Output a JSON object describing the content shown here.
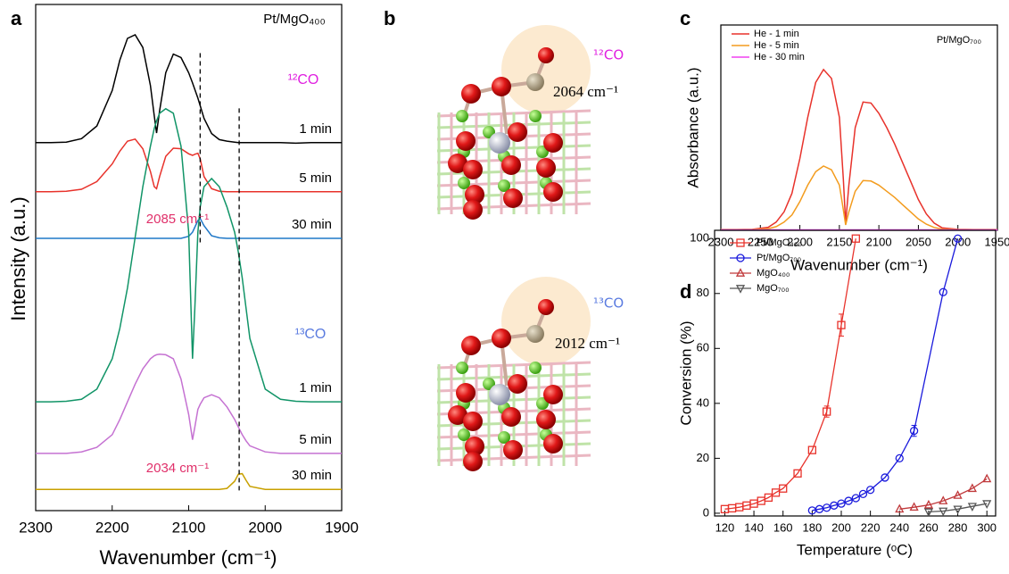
{
  "chart_data": [
    {
      "type": "line",
      "label": "a",
      "x_label": "Wavenumber (cm⁻¹)",
      "y_label": "Intensity (a.u.)",
      "xlim": [
        2300,
        1900
      ],
      "xticks": [
        2300,
        2200,
        2100,
        2000,
        1900
      ],
      "ylim": [
        0,
        100
      ],
      "x": [
        2300,
        2280,
        2260,
        2240,
        2220,
        2200,
        2190,
        2180,
        2170,
        2160,
        2150,
        2145,
        2142,
        2138,
        2130,
        2120,
        2110,
        2100,
        2095,
        2092,
        2088,
        2085,
        2080,
        2070,
        2060,
        2050,
        2040,
        2035,
        2030,
        2025,
        2020,
        2000,
        1980,
        1960,
        1940,
        1920,
        1900
      ],
      "series": [
        {
          "name": "1 min",
          "color": "#000000",
          "values": [
            72.7,
            72.7,
            72.8,
            73.5,
            76,
            83,
            89,
            93.3,
            94,
            91.5,
            84,
            78,
            74.6,
            79,
            86.5,
            90.2,
            89.5,
            86.5,
            84.5,
            83.2,
            81.5,
            80,
            77.5,
            74.5,
            73.3,
            73,
            72.8,
            72.7,
            72.7,
            72.7,
            72.7,
            72.7,
            72.7,
            72.6,
            72.7,
            72.7,
            72.7
          ]
        },
        {
          "name": "5 min",
          "color": "#e8322b",
          "values": [
            63,
            63,
            63.1,
            63.5,
            65,
            68.5,
            71,
            73,
            73.4,
            71.5,
            67,
            64,
            63.6,
            66,
            70,
            71.6,
            71.5,
            70.5,
            70.2,
            70.4,
            70.6,
            69.5,
            66,
            63.6,
            63.1,
            63,
            63,
            63,
            63,
            63,
            63,
            63,
            63,
            63,
            63,
            63,
            63
          ]
        },
        {
          "name": "30 min",
          "color": "#1f78c8",
          "values": [
            53.8,
            53.8,
            53.8,
            53.8,
            53.8,
            53.8,
            53.8,
            53.8,
            53.8,
            53.8,
            53.8,
            53.8,
            53.8,
            53.8,
            53.8,
            53.8,
            53.8,
            54.2,
            55,
            56,
            57.3,
            57.7,
            56.3,
            54.3,
            53.9,
            53.8,
            53.8,
            53.8,
            53.8,
            53.8,
            53.8,
            53.8,
            53.8,
            53.8,
            53.8,
            53.8,
            53.8
          ]
        },
        {
          "name": "1 min",
          "color": "#119467",
          "values": [
            21.5,
            21.5,
            21.6,
            22,
            24,
            30,
            36,
            44,
            54,
            64,
            72,
            75.5,
            77,
            78.5,
            79.4,
            78.5,
            72,
            55,
            30,
            40,
            55,
            60,
            64,
            65.6,
            64,
            60,
            55,
            51,
            46,
            40,
            34,
            24,
            22,
            21.6,
            21.5,
            21.5,
            21.5
          ]
        },
        {
          "name": "5 min",
          "color": "#c572d2",
          "values": [
            11.3,
            11.3,
            11.3,
            11.6,
            12.5,
            15,
            18,
            21.5,
            25,
            28,
            30,
            30.6,
            30.8,
            30.9,
            30.8,
            30,
            26,
            19,
            14,
            16.5,
            20,
            21,
            22.3,
            22.9,
            22.3,
            20.5,
            18,
            16.5,
            15,
            13.8,
            12.8,
            11.6,
            11.3,
            11.3,
            11.3,
            11.3,
            11.3
          ]
        },
        {
          "name": "30 min",
          "color": "#c8a000",
          "values": [
            4.2,
            4.2,
            4.2,
            4.2,
            4.2,
            4.2,
            4.2,
            4.2,
            4.2,
            4.2,
            4.2,
            4.2,
            4.2,
            4.2,
            4.2,
            4.2,
            4.2,
            4.2,
            4.2,
            4.2,
            4.2,
            4.2,
            4.2,
            4.2,
            4.2,
            4.4,
            5.8,
            7.2,
            7.3,
            6,
            4.8,
            4.2,
            4.2,
            4.2,
            4.2,
            4.2,
            4.2
          ]
        }
      ],
      "vlines": [
        {
          "x": 2085,
          "y": [
            53,
            91
          ]
        },
        {
          "x": 2034,
          "y": [
            4,
            80
          ]
        }
      ],
      "annotations": [
        {
          "text": "Pt/MgO₄₀₀",
          "color": "#000000"
        },
        {
          "text": "¹²CO",
          "color": "#e020e0"
        },
        {
          "text": "¹³CO",
          "color": "#5a7be0"
        },
        {
          "text": "2085 cm⁻¹",
          "color": "#e0306a"
        },
        {
          "text": "2034 cm⁻¹",
          "color": "#e0306a"
        }
      ]
    },
    {
      "type": "illustration",
      "label": "b",
      "annotations": [
        {
          "text": "¹²CO",
          "color": "#e020e0"
        },
        {
          "text": "2064 cm⁻¹",
          "color": "#000000"
        },
        {
          "text": "¹³CO",
          "color": "#5a7be0"
        },
        {
          "text": "2012 cm⁻¹",
          "color": "#000000"
        }
      ]
    },
    {
      "type": "line",
      "label": "c",
      "x_label": "Wavenumber (cm⁻¹)",
      "y_label": "Absorbance (a.u.)",
      "xlim": [
        2300,
        1950
      ],
      "xticks": [
        2300,
        2250,
        2200,
        2150,
        2100,
        2050,
        2000,
        1950
      ],
      "ylim": [
        0,
        100
      ],
      "x": [
        2300,
        2280,
        2260,
        2240,
        2230,
        2220,
        2210,
        2200,
        2190,
        2180,
        2170,
        2160,
        2150,
        2145,
        2142,
        2138,
        2130,
        2120,
        2110,
        2100,
        2090,
        2080,
        2070,
        2060,
        2050,
        2040,
        2030,
        2020,
        2000,
        1980,
        1960,
        1950
      ],
      "legend": "upper left",
      "series": [
        {
          "name": "He - 1 min",
          "color": "#e8322b",
          "values": [
            0.4,
            0.4,
            0.5,
            1.5,
            4,
            9,
            18,
            35,
            55,
            72,
            78.3,
            74,
            55,
            25,
            3.5,
            22,
            50,
            62.5,
            62,
            57,
            50,
            42,
            33,
            24,
            15,
            8,
            3.5,
            1.2,
            0.5,
            0.4,
            0.4,
            0.4
          ]
        },
        {
          "name": "He - 5 min",
          "color": "#f39c1e",
          "values": [
            0.3,
            0.3,
            0.4,
            0.8,
            1.8,
            4,
            7.5,
            14,
            22,
            28.5,
            31.3,
            29.5,
            22,
            10,
            2.6,
            9,
            19,
            24.2,
            24,
            22,
            19,
            16,
            12.5,
            9,
            5.5,
            3,
            1.4,
            0.6,
            0.3,
            0.3,
            0.3,
            0.3
          ]
        },
        {
          "name": "He - 30 min",
          "color": "#f040f0",
          "values": [
            0.2,
            0.2,
            0.2,
            0.2,
            0.2,
            0.2,
            0.2,
            0.2,
            0.2,
            0.2,
            0.2,
            0.2,
            0.2,
            0.2,
            0.2,
            0.2,
            0.2,
            0.2,
            0.2,
            0.2,
            0.2,
            0.2,
            0.2,
            0.2,
            0.2,
            0.2,
            0.2,
            0.2,
            0.2,
            0.2,
            0.2,
            0.2
          ]
        }
      ],
      "annotations": [
        {
          "text": "Pt/MgO₇₀₀",
          "color": "#000000"
        }
      ]
    },
    {
      "type": "scatter",
      "label": "d",
      "x_label": "Temperature (ᵒC)",
      "y_label": "Conversion (%)",
      "xlim": [
        113,
        306
      ],
      "xticks": [
        120,
        140,
        160,
        180,
        200,
        220,
        240,
        260,
        280,
        300
      ],
      "ylim": [
        -1,
        103
      ],
      "yticks": [
        0,
        20,
        40,
        60,
        80,
        100
      ],
      "legend": "upper left",
      "series": [
        {
          "name": "Pt/MgO₄₀₀",
          "color": "#e8322b",
          "marker": "square",
          "x": [
            120,
            125,
            130,
            135,
            140,
            145,
            150,
            155,
            160,
            170,
            180,
            190,
            200,
            210
          ],
          "values": [
            1.5,
            1.8,
            2.2,
            2.8,
            3.5,
            4.5,
            5.7,
            7.5,
            9,
            14.5,
            23,
            37,
            68.5,
            100
          ],
          "errors": [
            null,
            null,
            null,
            null,
            null,
            null,
            null,
            null,
            null,
            null,
            null,
            2,
            4,
            null
          ]
        },
        {
          "name": "Pt/MgO₇₀₀",
          "color": "#1a1adc",
          "marker": "circle",
          "x": [
            180,
            185,
            190,
            195,
            200,
            205,
            210,
            215,
            220,
            230,
            240,
            250,
            270,
            280
          ],
          "values": [
            1,
            1.5,
            2,
            2.8,
            3.5,
            4.5,
            5.5,
            7,
            8.5,
            13,
            20,
            30,
            80.5,
            100
          ],
          "errors": [
            null,
            null,
            null,
            null,
            null,
            null,
            null,
            null,
            null,
            null,
            null,
            2,
            null,
            null
          ]
        },
        {
          "name": "MgO₄₀₀",
          "color": "#c0393b",
          "marker": "triangle-up",
          "x": [
            240,
            250,
            260,
            270,
            280,
            290,
            300
          ],
          "values": [
            1.5,
            2.2,
            3,
            4.5,
            6.5,
            9,
            12.5
          ]
        },
        {
          "name": "MgO₇₀₀",
          "color": "#555555",
          "marker": "triangle-down",
          "x": [
            260,
            270,
            280,
            290,
            300
          ],
          "values": [
            0.5,
            0.8,
            1.5,
            2.5,
            3.5
          ]
        }
      ]
    }
  ]
}
